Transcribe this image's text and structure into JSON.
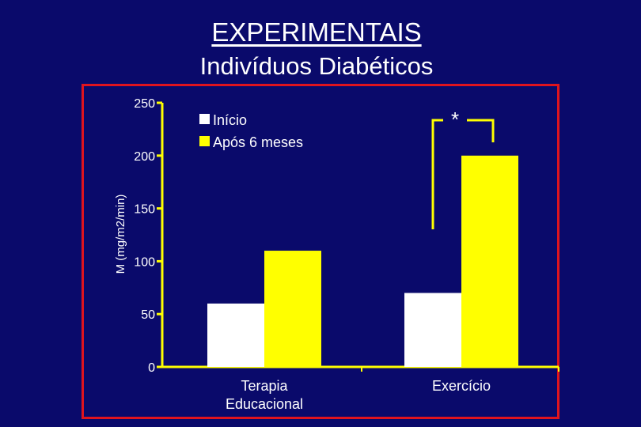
{
  "slide": {
    "title": "EXPERIMENTAIS",
    "subtitle": "Indivíduos Diabéticos"
  },
  "colors": {
    "background": "#0a0a6b",
    "frame": "#e0141e",
    "axis": "#ffff00",
    "series_inicio": "#ffffff",
    "series_apos": "#ffff00"
  },
  "chart_data": {
    "type": "bar",
    "title": "",
    "xlabel": "",
    "ylabel": "M (mg/m2/min)",
    "ylim": [
      0,
      250
    ],
    "yticks": [
      0,
      50,
      100,
      150,
      200,
      250
    ],
    "categories": [
      "Terapia\nEducacional",
      "Exercício"
    ],
    "series": [
      {
        "name": "Início",
        "values": [
          60,
          70
        ]
      },
      {
        "name": "Após 6 meses",
        "values": [
          110,
          200
        ]
      }
    ],
    "legend_position": "top-left",
    "annotations": [
      {
        "text": "*",
        "category": "Exercício",
        "type": "significance-bracket"
      }
    ]
  }
}
